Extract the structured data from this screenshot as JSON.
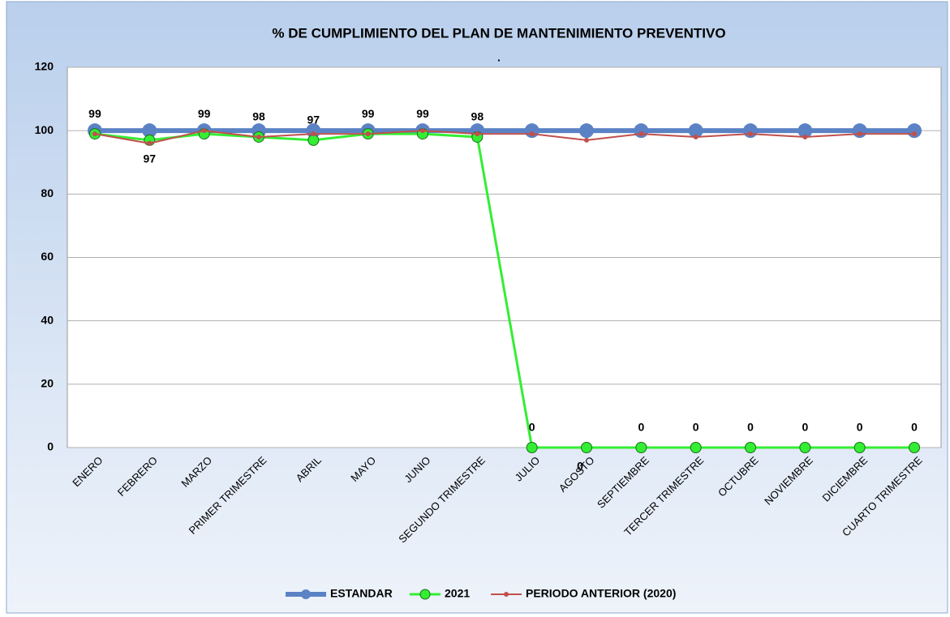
{
  "chart_data": {
    "type": "line",
    "title": "% DE CUMPLIMIENTO DEL PLAN DE MANTENIMIENTO PREVENTIVO",
    "subtitle": ".",
    "categories": [
      "ENERO",
      "FEBRERO",
      "MARZO",
      "PRIMER TRIMESTRE",
      "ABRIL",
      "MAYO",
      "JUNIO",
      "SEGUNDO TRIMESTRE",
      "JULIO",
      "AGOSTO",
      "SEPTIEMBRE",
      "TERCER TRIMESTRE",
      "OCTUBRE",
      "NOVIEMBRE",
      "DICIEMBRE",
      "CUARTO TRIMESTRE"
    ],
    "series": [
      {
        "name": "ESTANDAR",
        "color": "#5b82c4",
        "values": [
          100,
          100,
          100,
          100,
          100,
          100,
          100,
          100,
          100,
          100,
          100,
          100,
          100,
          100,
          100,
          100
        ]
      },
      {
        "name": "2021",
        "color": "#33ee33",
        "values": [
          99,
          97,
          99,
          98,
          97,
          99,
          99,
          98,
          0,
          0,
          0,
          0,
          0,
          0,
          0,
          0
        ],
        "data_labels": true
      },
      {
        "name": "PERIODO ANTERIOR (2020)",
        "color": "#c0504d",
        "values": [
          99,
          96,
          100,
          98,
          99,
          99,
          100,
          99,
          99,
          97,
          99,
          98,
          99,
          98,
          99,
          99
        ]
      }
    ],
    "ylim": [
      0,
      120
    ],
    "yticks": [
      0,
      20,
      40,
      60,
      80,
      100,
      120
    ],
    "grid": true,
    "legend": "bottom"
  }
}
